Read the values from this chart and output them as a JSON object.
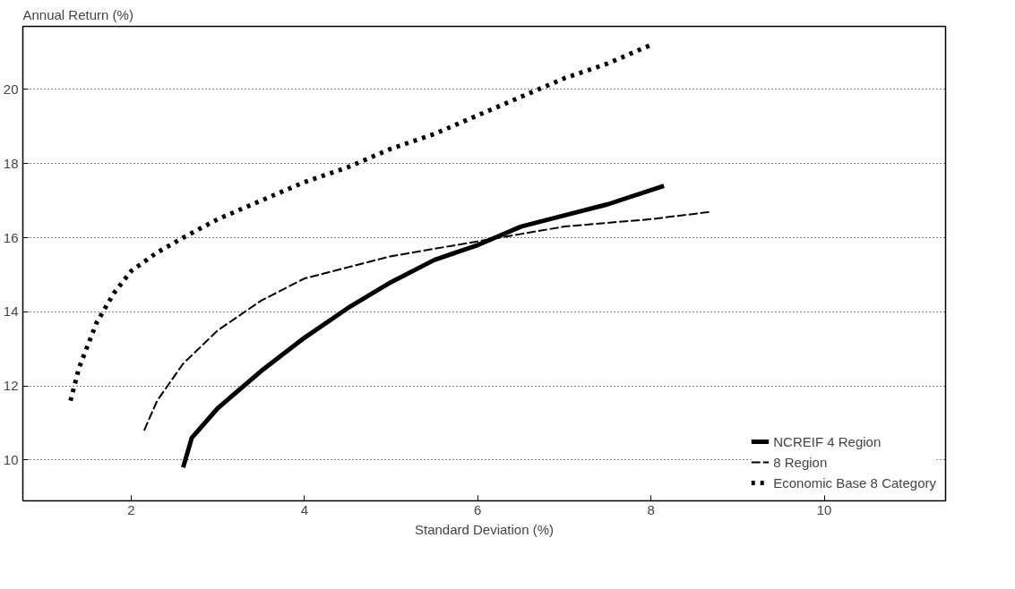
{
  "chart_data": {
    "type": "line",
    "xlabel": "Standard Deviation (%)",
    "ylabel": "Annual Return (%)",
    "xlim": [
      0.75,
      11.4
    ],
    "ylim": [
      8.9,
      21.7
    ],
    "xticks": [
      2,
      4,
      6,
      8,
      10
    ],
    "yticks": [
      10,
      12,
      14,
      16,
      18,
      20
    ],
    "grid": "y",
    "legend": "bottom right",
    "series": [
      {
        "name": "NCREIF 4 Region",
        "color": "#000000",
        "line_style": "solid",
        "x": [
          2.6,
          2.7,
          3.0,
          3.5,
          4.0,
          4.5,
          5.0,
          5.5,
          6.0,
          6.5,
          7.0,
          7.5,
          8.15
        ],
        "values": [
          9.8,
          10.6,
          11.4,
          12.4,
          13.3,
          14.1,
          14.8,
          15.4,
          15.8,
          16.3,
          16.6,
          16.9,
          17.4
        ]
      },
      {
        "name": "8 Region",
        "color": "#000000",
        "line_style": "dashed",
        "x": [
          2.15,
          2.3,
          2.6,
          3.0,
          3.5,
          4.0,
          4.5,
          5.0,
          5.5,
          6.0,
          6.5,
          7.0,
          7.5,
          8.0,
          8.7
        ],
        "values": [
          10.8,
          11.6,
          12.6,
          13.5,
          14.3,
          14.9,
          15.2,
          15.5,
          15.7,
          15.9,
          16.1,
          16.3,
          16.4,
          16.5,
          16.7
        ]
      },
      {
        "name": "Economic Base 8 Category",
        "color": "#000000",
        "line_style": "dotted",
        "x": [
          1.3,
          1.4,
          1.6,
          1.8,
          2.0,
          2.3,
          2.6,
          3.0,
          3.5,
          4.0,
          4.5,
          5.0,
          5.5,
          6.0,
          6.5,
          7.0,
          7.5,
          8.0
        ],
        "values": [
          11.6,
          12.5,
          13.7,
          14.5,
          15.1,
          15.6,
          16.0,
          16.5,
          17.0,
          17.5,
          17.9,
          18.4,
          18.8,
          19.3,
          19.8,
          20.3,
          20.7,
          21.2
        ]
      }
    ]
  }
}
